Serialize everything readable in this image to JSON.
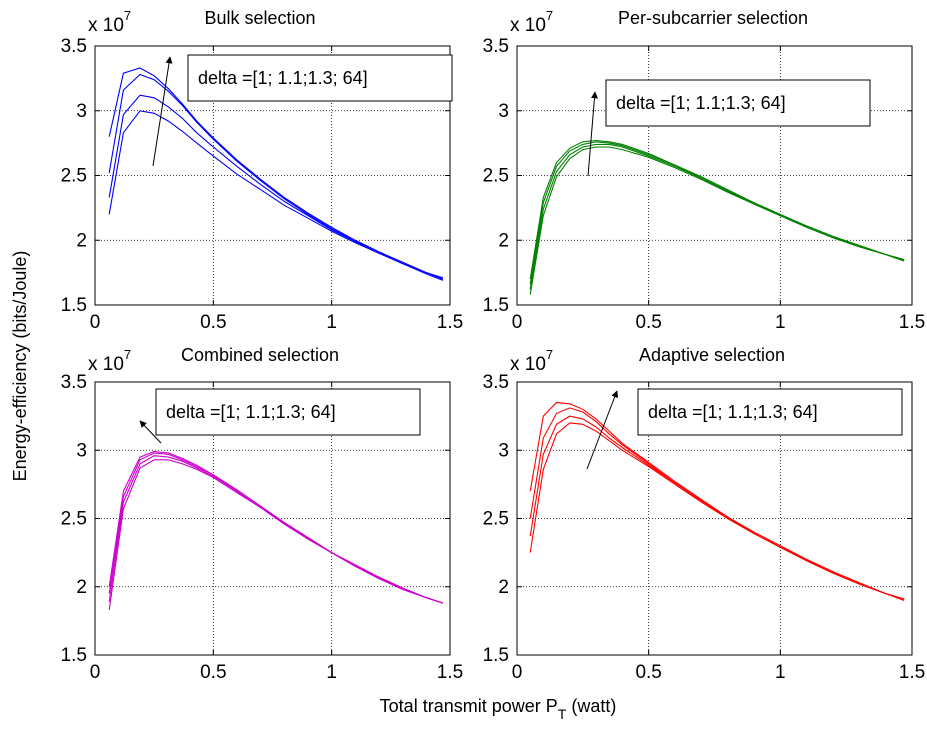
{
  "figure": {
    "ylabel": "Energy-efficiency (bits/Joule)",
    "xlabel_main": "Total transmit power P",
    "xlabel_sub": "T",
    "xlabel_unit": "(watt)"
  },
  "chart_data": [
    {
      "type": "line",
      "title": "Bulk selection",
      "exponent_label": "x 10",
      "exponent_power": "7",
      "annotation": "delta =[1; 1.1;1.3; 64]",
      "xlim": [
        0,
        1.5
      ],
      "ylim": [
        15000000,
        35000000
      ],
      "xticks": [
        0,
        0.5,
        1,
        1.5
      ],
      "xtick_labels": [
        "0",
        "0.5",
        "1",
        "1.5"
      ],
      "yticks": [
        15000000,
        20000000,
        25000000,
        30000000,
        35000000
      ],
      "ytick_labels": [
        "1.5",
        "2",
        "2.5",
        "3",
        "3.5"
      ],
      "grid": true,
      "color": "#0000ff",
      "x": [
        0.06,
        0.12,
        0.19,
        0.25,
        0.31,
        0.37,
        0.43,
        0.5,
        0.6,
        0.7,
        0.8,
        0.9,
        1.0,
        1.1,
        1.2,
        1.3,
        1.4,
        1.47
      ],
      "series": [
        {
          "values": [
            22000000,
            28300000,
            30000000,
            29800000,
            29200000,
            28400000,
            27500000,
            26500000,
            25100000,
            23900000,
            22700000,
            21700000,
            20700000,
            19800000,
            19000000,
            18200000,
            17400000,
            16900000
          ]
        },
        {
          "values": [
            23300000,
            29700000,
            31200000,
            31000000,
            30300000,
            29400000,
            28300000,
            27200000,
            25700000,
            24300000,
            23000000,
            21900000,
            20800000,
            19900000,
            19000000,
            18200000,
            17500000,
            17000000
          ]
        },
        {
          "values": [
            25200000,
            31600000,
            32800000,
            32400000,
            31500000,
            30400000,
            29100000,
            27800000,
            26100000,
            24600000,
            23200000,
            22000000,
            20900000,
            19900000,
            19000000,
            18200000,
            17500000,
            17000000
          ]
        },
        {
          "values": [
            28000000,
            32900000,
            33300000,
            32700000,
            31700000,
            30500000,
            29200000,
            27900000,
            26200000,
            24700000,
            23300000,
            22100000,
            21000000,
            20000000,
            19100000,
            18300000,
            17500000,
            17100000
          ]
        }
      ]
    },
    {
      "type": "line",
      "title": "Per-subcarrier selection",
      "exponent_label": "x 10",
      "exponent_power": "7",
      "annotation": "delta =[1; 1.1;1.3; 64]",
      "xlim": [
        0,
        1.5
      ],
      "ylim": [
        15000000,
        35000000
      ],
      "xticks": [
        0,
        0.5,
        1,
        1.5
      ],
      "xtick_labels": [
        "0",
        "0.5",
        "1",
        "1.5"
      ],
      "yticks": [
        15000000,
        20000000,
        25000000,
        30000000,
        35000000
      ],
      "ytick_labels": [
        "1.5",
        "2",
        "2.5",
        "3",
        "3.5"
      ],
      "grid": true,
      "color": "#008000",
      "x": [
        0.05,
        0.1,
        0.15,
        0.2,
        0.25,
        0.3,
        0.35,
        0.4,
        0.5,
        0.6,
        0.7,
        0.8,
        0.9,
        1.0,
        1.1,
        1.2,
        1.3,
        1.4,
        1.47
      ],
      "series": [
        {
          "values": [
            15800000,
            21900000,
            24900000,
            26300000,
            27000000,
            27200000,
            27200000,
            27000000,
            26400000,
            25600000,
            24700000,
            23700000,
            22800000,
            21900000,
            21000000,
            20200000,
            19500000,
            18900000,
            18400000
          ]
        },
        {
          "values": [
            16200000,
            22400000,
            25300000,
            26600000,
            27200000,
            27400000,
            27400000,
            27200000,
            26500000,
            25700000,
            24800000,
            23800000,
            22800000,
            21900000,
            21000000,
            20200000,
            19500000,
            18900000,
            18400000
          ]
        },
        {
          "values": [
            16600000,
            22900000,
            25700000,
            26900000,
            27400000,
            27600000,
            27500000,
            27300000,
            26600000,
            25800000,
            24800000,
            23800000,
            22900000,
            21900000,
            21100000,
            20300000,
            19500000,
            18900000,
            18500000
          ]
        },
        {
          "values": [
            17000000,
            23300000,
            26000000,
            27100000,
            27600000,
            27700000,
            27600000,
            27400000,
            26700000,
            25800000,
            24900000,
            23900000,
            22900000,
            22000000,
            21100000,
            20300000,
            19600000,
            18900000,
            18500000
          ]
        }
      ]
    },
    {
      "type": "line",
      "title": "Combined selection",
      "exponent_label": "x 10",
      "exponent_power": "7",
      "annotation": "delta =[1; 1.1;1.3; 64]",
      "xlim": [
        0,
        1.5
      ],
      "ylim": [
        15000000,
        35000000
      ],
      "xticks": [
        0,
        0.5,
        1,
        1.5
      ],
      "xtick_labels": [
        "0",
        "0.5",
        "1",
        "1.5"
      ],
      "yticks": [
        15000000,
        20000000,
        25000000,
        30000000,
        35000000
      ],
      "ytick_labels": [
        "1.5",
        "2",
        "2.5",
        "3",
        "3.5"
      ],
      "grid": true,
      "color": "#cc00cc",
      "x": [
        0.06,
        0.12,
        0.19,
        0.25,
        0.31,
        0.37,
        0.43,
        0.5,
        0.6,
        0.7,
        0.8,
        0.9,
        1.0,
        1.1,
        1.2,
        1.3,
        1.4,
        1.47
      ],
      "series": [
        {
          "values": [
            18300000,
            25700000,
            28700000,
            29300000,
            29300000,
            29000000,
            28600000,
            28000000,
            26900000,
            25800000,
            24600000,
            23500000,
            22500000,
            21500000,
            20600000,
            19800000,
            19200000,
            18800000
          ]
        },
        {
          "values": [
            18900000,
            26200000,
            29000000,
            29600000,
            29500000,
            29200000,
            28700000,
            28100000,
            27000000,
            25800000,
            24600000,
            23500000,
            22500000,
            21500000,
            20600000,
            19900000,
            19200000,
            18800000
          ]
        },
        {
          "values": [
            19500000,
            26600000,
            29300000,
            29800000,
            29700000,
            29300000,
            28800000,
            28200000,
            27000000,
            25800000,
            24700000,
            23600000,
            22500000,
            21500000,
            20700000,
            19900000,
            19200000,
            18800000
          ]
        },
        {
          "values": [
            20000000,
            27000000,
            29500000,
            29900000,
            29800000,
            29400000,
            28900000,
            28200000,
            27100000,
            25900000,
            24700000,
            23600000,
            22500000,
            21600000,
            20700000,
            19900000,
            19200000,
            18800000
          ]
        }
      ]
    },
    {
      "type": "line",
      "title": "Adaptive selection",
      "exponent_label": "x 10",
      "exponent_power": "7",
      "annotation": "delta =[1; 1.1;1.3; 64]",
      "xlim": [
        0,
        1.5
      ],
      "ylim": [
        15000000,
        35000000
      ],
      "xticks": [
        0,
        0.5,
        1,
        1.5
      ],
      "xtick_labels": [
        "0",
        "0.5",
        "1",
        "1.5"
      ],
      "yticks": [
        15000000,
        20000000,
        25000000,
        30000000,
        35000000
      ],
      "ytick_labels": [
        "1.5",
        "2",
        "2.5",
        "3",
        "3.5"
      ],
      "grid": true,
      "color": "#ff0000",
      "x": [
        0.05,
        0.1,
        0.15,
        0.2,
        0.25,
        0.3,
        0.35,
        0.4,
        0.5,
        0.6,
        0.7,
        0.8,
        0.9,
        1.0,
        1.1,
        1.2,
        1.3,
        1.4,
        1.47
      ],
      "series": [
        {
          "values": [
            22500000,
            28600000,
            31200000,
            32000000,
            31900000,
            31400000,
            30700000,
            30000000,
            28800000,
            27500000,
            26200000,
            25000000,
            23900000,
            22900000,
            21900000,
            21000000,
            20200000,
            19500000,
            19000000
          ]
        },
        {
          "values": [
            23700000,
            29700000,
            31900000,
            32500000,
            32300000,
            31700000,
            30900000,
            30200000,
            28900000,
            27600000,
            26300000,
            25000000,
            23900000,
            22900000,
            21900000,
            21000000,
            20200000,
            19500000,
            19000000
          ]
        },
        {
          "values": [
            25000000,
            30900000,
            32700000,
            33100000,
            32800000,
            32100000,
            31200000,
            30400000,
            29000000,
            27600000,
            26300000,
            25100000,
            23900000,
            22900000,
            22000000,
            21100000,
            20200000,
            19500000,
            19100000
          ]
        },
        {
          "values": [
            27000000,
            32500000,
            33500000,
            33400000,
            33000000,
            32300000,
            31400000,
            30500000,
            29100000,
            27700000,
            26400000,
            25100000,
            24000000,
            23000000,
            22000000,
            21100000,
            20300000,
            19500000,
            19100000
          ]
        }
      ]
    }
  ]
}
